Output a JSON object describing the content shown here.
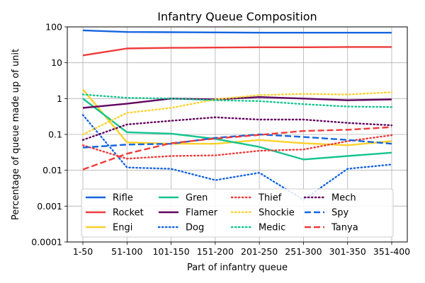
{
  "chart_data": {
    "type": "line",
    "title": "Infantry Queue Composition",
    "xlabel": "Part of infantry queue",
    "ylabel": "Percentage of queue made up of unit",
    "yscale": "log",
    "ylim": [
      0.0001,
      100
    ],
    "yticks": [
      {
        "value": 0.0001,
        "label": "0.0001"
      },
      {
        "value": 0.001,
        "label": "0.001"
      },
      {
        "value": 0.01,
        "label": "0.01"
      },
      {
        "value": 0.1,
        "label": "0.1"
      },
      {
        "value": 1,
        "label": "1"
      },
      {
        "value": 10,
        "label": "10"
      },
      {
        "value": 100,
        "label": "100"
      }
    ],
    "categories": [
      "1-50",
      "51-100",
      "101-150",
      "151-200",
      "201-250",
      "251-300",
      "301-350",
      "351-400"
    ],
    "grid": true,
    "legend_position": "lower-center",
    "series": [
      {
        "name": "Rifle",
        "color": "#1565e0",
        "style": "solid",
        "values": [
          80,
          72,
          71,
          70,
          69,
          69,
          69,
          69
        ]
      },
      {
        "name": "Rocket",
        "color": "#ee3b3b",
        "style": "solid",
        "values": [
          16,
          25,
          26,
          26.5,
          27,
          27,
          27.5,
          27.5
        ]
      },
      {
        "name": "Engi",
        "color": "#fcd12a",
        "style": "solid",
        "values": [
          1.8,
          0.06,
          0.055,
          0.055,
          0.07,
          0.057,
          0.05,
          0.065
        ]
      },
      {
        "name": "Gren",
        "color": "#13c48e",
        "style": "solid",
        "values": [
          1.0,
          0.115,
          0.105,
          0.075,
          0.045,
          0.02,
          0.025,
          0.031
        ]
      },
      {
        "name": "Flamer",
        "color": "#62045e",
        "style": "solid",
        "values": [
          0.55,
          0.72,
          1.0,
          0.95,
          1.1,
          1.0,
          0.9,
          0.95
        ]
      },
      {
        "name": "Dog",
        "color": "#1565e0",
        "style": "dotted",
        "values": [
          0.35,
          0.012,
          0.011,
          0.0053,
          0.0085,
          0.0015,
          0.011,
          0.0145
        ]
      },
      {
        "name": "Thief",
        "color": "#ee3b3b",
        "style": "dotted",
        "values": [
          0.05,
          0.021,
          0.025,
          0.026,
          0.035,
          0.038,
          0.065,
          0.095
        ]
      },
      {
        "name": "Shockie",
        "color": "#fcd12a",
        "style": "dotted",
        "values": [
          0.1,
          0.4,
          0.55,
          0.95,
          1.25,
          1.35,
          1.3,
          1.5
        ]
      },
      {
        "name": "Medic",
        "color": "#13c48e",
        "style": "dotted",
        "values": [
          1.3,
          1.05,
          1.0,
          0.9,
          0.85,
          0.7,
          0.6,
          0.58
        ]
      },
      {
        "name": "Mech",
        "color": "#62045e",
        "style": "dotted",
        "values": [
          0.07,
          0.19,
          0.24,
          0.3,
          0.26,
          0.26,
          0.21,
          0.18
        ]
      },
      {
        "name": "Spy",
        "color": "#1565e0",
        "style": "dashed",
        "values": [
          0.043,
          0.052,
          0.055,
          0.08,
          0.1,
          0.085,
          0.07,
          0.055
        ]
      },
      {
        "name": "Tanya",
        "color": "#ee3b3b",
        "style": "dashed",
        "values": [
          0.0105,
          0.029,
          0.057,
          0.077,
          0.097,
          0.125,
          0.135,
          0.16
        ]
      }
    ]
  }
}
